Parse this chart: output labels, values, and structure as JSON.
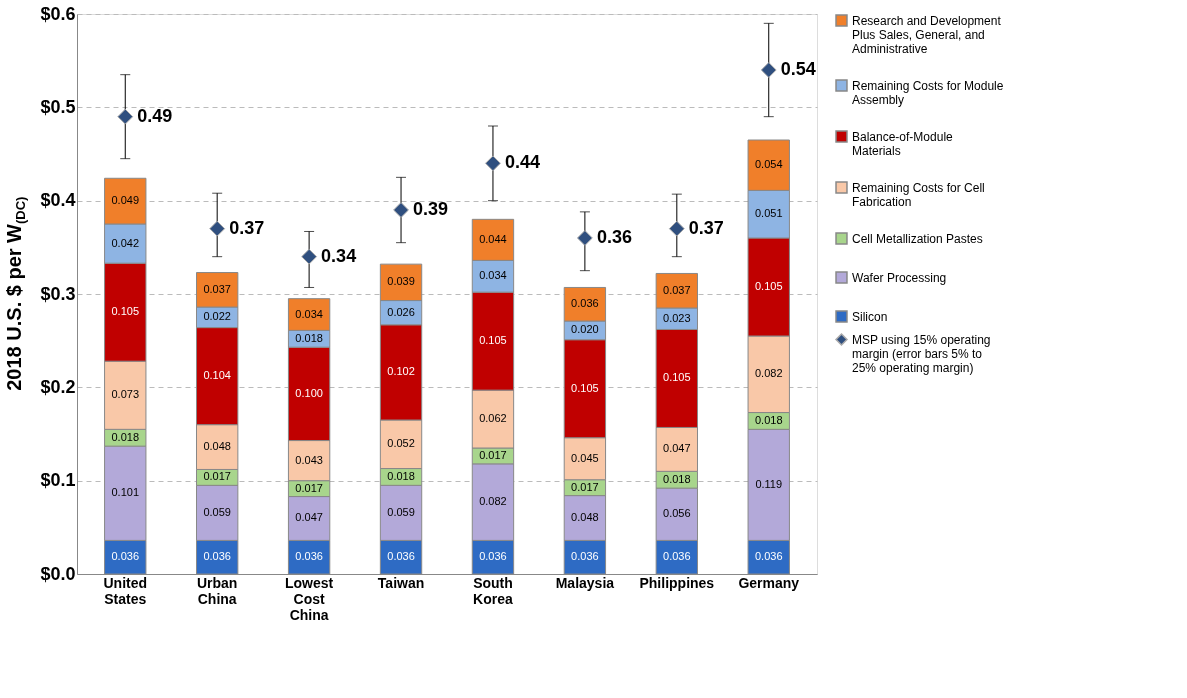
{
  "chart_data": {
    "type": "bar",
    "stacked": true,
    "ylabel": "2018 U.S. $ per W$_{(DC)}$",
    "categories": [
      "United States",
      "Urban China",
      "Lowest Cost China",
      "Taiwan",
      "South Korea",
      "Malaysia",
      "Philippines",
      "Germany"
    ],
    "series": [
      {
        "name": "Silicon",
        "color": "#2e6bc4",
        "values": [
          0.036,
          0.036,
          0.036,
          0.036,
          0.036,
          0.036,
          0.036,
          0.036
        ]
      },
      {
        "name": "Wafer Processing",
        "color": "#b3a9d9",
        "values": [
          0.101,
          0.059,
          0.047,
          0.059,
          0.082,
          0.048,
          0.056,
          0.119
        ]
      },
      {
        "name": "Cell Metallization Pastes",
        "color": "#a8d58c",
        "values": [
          0.018,
          0.017,
          0.017,
          0.018,
          0.017,
          0.017,
          0.018,
          0.018
        ]
      },
      {
        "name": "Remaining Costs for Cell Fabrication",
        "color": "#f9c8a8",
        "values": [
          0.073,
          0.048,
          0.043,
          0.052,
          0.062,
          0.045,
          0.047,
          0.082
        ]
      },
      {
        "name": "Balance-of-Module Materials",
        "color": "#c00000",
        "values": [
          0.105,
          0.104,
          0.1,
          0.102,
          0.105,
          0.105,
          0.105,
          0.105
        ],
        "value_labels": [
          "0.105",
          "0.104",
          "0.100",
          "0.102",
          "0.105",
          "0.105",
          "0.105",
          "0.105"
        ]
      },
      {
        "name": "Remaining Costs for Module Assembly",
        "color": "#8eb4e3",
        "values": [
          0.042,
          0.022,
          0.018,
          0.026,
          0.034,
          0.02,
          0.023,
          0.051
        ],
        "value_labels": [
          "0.042",
          "0.022",
          "0.018",
          "0.026",
          "0.034",
          "0.020",
          "0.023",
          "0.051"
        ]
      },
      {
        "name": "Research and Development Plus Sales, General, and Administrative",
        "color": "#f07f2a",
        "values": [
          0.049,
          0.037,
          0.034,
          0.039,
          0.044,
          0.036,
          0.037,
          0.054
        ]
      },
      {
        "name": "MSP using 15% operating margin (error bars 5% to 25% operating margin)",
        "type": "scatter",
        "marker": "diamond",
        "color": "#2f4f7f",
        "values": [
          0.49,
          0.37,
          0.34,
          0.39,
          0.44,
          0.36,
          0.37,
          0.54
        ],
        "errors": [
          [
            0.445,
            0.535
          ],
          [
            0.34,
            0.408
          ],
          [
            0.307,
            0.367
          ],
          [
            0.355,
            0.425
          ],
          [
            0.4,
            0.48
          ],
          [
            0.325,
            0.388
          ],
          [
            0.34,
            0.407
          ],
          [
            0.49,
            0.59
          ]
        ]
      }
    ],
    "ylim": [
      0,
      0.6
    ],
    "yticks": [
      {
        "value": 0,
        "label": "$0.0"
      },
      {
        "value": 0.1,
        "label": "$0.1"
      },
      {
        "value": 0.2,
        "label": "$0.2"
      },
      {
        "value": 0.3,
        "label": "$0.3"
      },
      {
        "value": 0.4,
        "label": "$0.4"
      },
      {
        "value": 0.5,
        "label": "$0.5"
      },
      {
        "value": 0.6,
        "label": "$0.6"
      }
    ],
    "grid": "y",
    "legend": "right",
    "data_labels": true
  }
}
